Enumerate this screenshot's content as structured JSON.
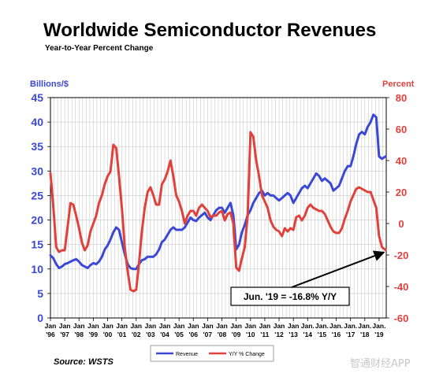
{
  "chart_data": {
    "type": "line",
    "title": "Worldwide Semiconductor Revenues",
    "subtitle": "Year-to-Year Percent Change",
    "ylabel_left": "Billions/$",
    "ylabel_right": "Percent",
    "ylim_left": [
      0,
      45
    ],
    "ylim_right": [
      -60,
      80
    ],
    "yticks_left": [
      "0",
      "5",
      "10",
      "15",
      "20",
      "25",
      "30",
      "35",
      "40",
      "45"
    ],
    "yticks_right": [
      "-60",
      "-40",
      "-20",
      "0",
      "20",
      "40",
      "60",
      "80"
    ],
    "xlim": [
      1996.0,
      2019.5
    ],
    "xticks": [
      {
        "x": 1996,
        "month": "Jan",
        "year": "'96"
      },
      {
        "x": 1997,
        "month": "Jan",
        "year": "'97"
      },
      {
        "x": 1998,
        "month": "Jan",
        "year": "'98"
      },
      {
        "x": 1999,
        "month": "Jan",
        "year": "'99"
      },
      {
        "x": 2000,
        "month": "Jan",
        "year": "'00"
      },
      {
        "x": 2001,
        "month": "Jan",
        "year": "'01"
      },
      {
        "x": 2002,
        "month": "Jan",
        "year": "'02"
      },
      {
        "x": 2003,
        "month": "Jan",
        "year": "'03"
      },
      {
        "x": 2004,
        "month": "Jan",
        "year": "'04"
      },
      {
        "x": 2005,
        "month": "Jan",
        "year": "'05"
      },
      {
        "x": 2006,
        "month": "Jan",
        "year": "'06"
      },
      {
        "x": 2007,
        "month": "Jan",
        "year": "'07"
      },
      {
        "x": 2008,
        "month": "Jan",
        "year": "'08"
      },
      {
        "x": 2009,
        "month": "Jan",
        "year": "'09"
      },
      {
        "x": 2010,
        "month": "Jan",
        "year": "'10"
      },
      {
        "x": 2011,
        "month": "Jan",
        "year": "'11"
      },
      {
        "x": 2012,
        "month": "Jan",
        "year": "'12"
      },
      {
        "x": 2013,
        "month": "Jan",
        "year": "'13"
      },
      {
        "x": 2014,
        "month": "Jan.",
        "year": "'14"
      },
      {
        "x": 2015,
        "month": "Jan.",
        "year": "'15"
      },
      {
        "x": 2016,
        "month": "Jan.",
        "year": "'16"
      },
      {
        "x": 2017,
        "month": "Jan.",
        "year": "'17"
      },
      {
        "x": 2018,
        "month": "Jan.",
        "year": "'18"
      },
      {
        "x": 2019,
        "month": "Jan.",
        "year": "'19"
      }
    ],
    "grid": true,
    "legend_position": "bottom-center",
    "series": [
      {
        "name": "Revenue",
        "axis": "left",
        "color": "#3b48d6",
        "points": [
          [
            1996.0,
            12.8
          ],
          [
            1996.2,
            12.2
          ],
          [
            1996.4,
            11.0
          ],
          [
            1996.6,
            10.2
          ],
          [
            1996.8,
            10.5
          ],
          [
            1997.0,
            11.0
          ],
          [
            1997.2,
            11.2
          ],
          [
            1997.4,
            11.5
          ],
          [
            1997.6,
            11.8
          ],
          [
            1997.8,
            12.0
          ],
          [
            1998.0,
            11.5
          ],
          [
            1998.2,
            10.8
          ],
          [
            1998.4,
            10.5
          ],
          [
            1998.6,
            10.2
          ],
          [
            1998.8,
            10.8
          ],
          [
            1999.0,
            11.2
          ],
          [
            1999.2,
            11.0
          ],
          [
            1999.4,
            11.5
          ],
          [
            1999.6,
            12.5
          ],
          [
            1999.8,
            14.0
          ],
          [
            2000.0,
            14.8
          ],
          [
            2000.2,
            16.0
          ],
          [
            2000.4,
            17.5
          ],
          [
            2000.6,
            18.5
          ],
          [
            2000.8,
            18.0
          ],
          [
            2001.0,
            15.5
          ],
          [
            2001.2,
            13.0
          ],
          [
            2001.4,
            11.0
          ],
          [
            2001.6,
            10.2
          ],
          [
            2001.8,
            10.0
          ],
          [
            2002.0,
            10.0
          ],
          [
            2002.2,
            11.0
          ],
          [
            2002.4,
            11.8
          ],
          [
            2002.6,
            12.0
          ],
          [
            2002.8,
            12.5
          ],
          [
            2003.0,
            12.5
          ],
          [
            2003.2,
            12.5
          ],
          [
            2003.4,
            13.0
          ],
          [
            2003.6,
            14.0
          ],
          [
            2003.8,
            15.5
          ],
          [
            2004.0,
            16.0
          ],
          [
            2004.2,
            17.0
          ],
          [
            2004.4,
            18.0
          ],
          [
            2004.6,
            18.5
          ],
          [
            2004.8,
            18.0
          ],
          [
            2005.0,
            18.0
          ],
          [
            2005.2,
            18.0
          ],
          [
            2005.4,
            18.5
          ],
          [
            2005.6,
            19.5
          ],
          [
            2005.8,
            20.5
          ],
          [
            2006.0,
            20.0
          ],
          [
            2006.2,
            19.8
          ],
          [
            2006.4,
            20.5
          ],
          [
            2006.6,
            21.0
          ],
          [
            2006.8,
            21.5
          ],
          [
            2007.0,
            20.5
          ],
          [
            2007.2,
            20.0
          ],
          [
            2007.4,
            21.0
          ],
          [
            2007.6,
            22.0
          ],
          [
            2007.8,
            22.5
          ],
          [
            2008.0,
            22.5
          ],
          [
            2008.2,
            21.5
          ],
          [
            2008.4,
            22.5
          ],
          [
            2008.6,
            23.5
          ],
          [
            2008.8,
            21.0
          ],
          [
            2009.0,
            14.0
          ],
          [
            2009.2,
            15.0
          ],
          [
            2009.4,
            17.5
          ],
          [
            2009.6,
            19.0
          ],
          [
            2009.8,
            21.0
          ],
          [
            2010.0,
            22.0
          ],
          [
            2010.2,
            23.5
          ],
          [
            2010.4,
            24.5
          ],
          [
            2010.6,
            25.5
          ],
          [
            2010.8,
            26.0
          ],
          [
            2011.0,
            25.0
          ],
          [
            2011.2,
            25.5
          ],
          [
            2011.4,
            25.0
          ],
          [
            2011.6,
            25.0
          ],
          [
            2011.8,
            24.5
          ],
          [
            2012.0,
            24.0
          ],
          [
            2012.2,
            24.5
          ],
          [
            2012.4,
            25.0
          ],
          [
            2012.6,
            25.5
          ],
          [
            2012.8,
            25.0
          ],
          [
            2013.0,
            23.5
          ],
          [
            2013.2,
            24.5
          ],
          [
            2013.4,
            25.5
          ],
          [
            2013.6,
            26.5
          ],
          [
            2013.8,
            27.0
          ],
          [
            2014.0,
            26.5
          ],
          [
            2014.2,
            27.5
          ],
          [
            2014.4,
            28.5
          ],
          [
            2014.6,
            29.5
          ],
          [
            2014.8,
            29.0
          ],
          [
            2015.0,
            28.0
          ],
          [
            2015.2,
            28.5
          ],
          [
            2015.4,
            28.0
          ],
          [
            2015.6,
            27.5
          ],
          [
            2015.8,
            26.0
          ],
          [
            2016.0,
            26.5
          ],
          [
            2016.2,
            27.0
          ],
          [
            2016.4,
            28.5
          ],
          [
            2016.6,
            30.0
          ],
          [
            2016.8,
            31.0
          ],
          [
            2017.0,
            31.0
          ],
          [
            2017.2,
            33.0
          ],
          [
            2017.4,
            35.5
          ],
          [
            2017.6,
            37.5
          ],
          [
            2017.8,
            38.0
          ],
          [
            2018.0,
            37.5
          ],
          [
            2018.2,
            39.0
          ],
          [
            2018.4,
            40.0
          ],
          [
            2018.6,
            41.5
          ],
          [
            2018.8,
            41.0
          ],
          [
            2019.0,
            33.0
          ],
          [
            2019.2,
            32.5
          ],
          [
            2019.45,
            33.0
          ]
        ]
      },
      {
        "name": "Y/Y % Change",
        "axis": "right",
        "color": "#e0413a",
        "points": [
          [
            1996.0,
            32.0
          ],
          [
            1996.1,
            22.0
          ],
          [
            1996.25,
            5.0
          ],
          [
            1996.4,
            -15.0
          ],
          [
            1996.6,
            -18.0
          ],
          [
            1996.8,
            -17.0
          ],
          [
            1997.0,
            -17.0
          ],
          [
            1997.2,
            -2.0
          ],
          [
            1997.4,
            13.0
          ],
          [
            1997.6,
            12.0
          ],
          [
            1997.8,
            5.0
          ],
          [
            1998.0,
            -3.0
          ],
          [
            1998.2,
            -12.0
          ],
          [
            1998.4,
            -17.0
          ],
          [
            1998.6,
            -14.0
          ],
          [
            1998.8,
            -5.0
          ],
          [
            1999.0,
            0.0
          ],
          [
            1999.2,
            5.0
          ],
          [
            1999.4,
            13.0
          ],
          [
            1999.6,
            18.0
          ],
          [
            1999.8,
            25.0
          ],
          [
            2000.0,
            30.0
          ],
          [
            2000.2,
            33.0
          ],
          [
            2000.4,
            50.0
          ],
          [
            2000.6,
            48.0
          ],
          [
            2000.8,
            30.0
          ],
          [
            2001.0,
            10.0
          ],
          [
            2001.2,
            -15.0
          ],
          [
            2001.4,
            -30.0
          ],
          [
            2001.6,
            -42.0
          ],
          [
            2001.8,
            -43.0
          ],
          [
            2002.0,
            -42.0
          ],
          [
            2002.2,
            -25.0
          ],
          [
            2002.4,
            -5.0
          ],
          [
            2002.6,
            10.0
          ],
          [
            2002.8,
            20.0
          ],
          [
            2003.0,
            23.0
          ],
          [
            2003.2,
            18.0
          ],
          [
            2003.4,
            12.0
          ],
          [
            2003.6,
            12.0
          ],
          [
            2003.8,
            25.0
          ],
          [
            2004.0,
            28.0
          ],
          [
            2004.2,
            33.0
          ],
          [
            2004.4,
            40.0
          ],
          [
            2004.6,
            30.0
          ],
          [
            2004.8,
            18.0
          ],
          [
            2005.0,
            14.0
          ],
          [
            2005.2,
            8.0
          ],
          [
            2005.4,
            0.0
          ],
          [
            2005.6,
            5.0
          ],
          [
            2005.8,
            8.0
          ],
          [
            2006.0,
            8.0
          ],
          [
            2006.2,
            5.0
          ],
          [
            2006.4,
            10.0
          ],
          [
            2006.6,
            12.0
          ],
          [
            2006.8,
            10.0
          ],
          [
            2007.0,
            8.0
          ],
          [
            2007.2,
            4.0
          ],
          [
            2007.4,
            5.0
          ],
          [
            2007.6,
            5.0
          ],
          [
            2007.8,
            7.0
          ],
          [
            2008.0,
            8.0
          ],
          [
            2008.2,
            2.0
          ],
          [
            2008.4,
            6.0
          ],
          [
            2008.6,
            7.0
          ],
          [
            2008.8,
            0.0
          ],
          [
            2009.0,
            -28.0
          ],
          [
            2009.2,
            -30.0
          ],
          [
            2009.4,
            -22.0
          ],
          [
            2009.6,
            -15.0
          ],
          [
            2009.8,
            5.0
          ],
          [
            2010.0,
            58.0
          ],
          [
            2010.2,
            55.0
          ],
          [
            2010.4,
            40.0
          ],
          [
            2010.6,
            30.0
          ],
          [
            2010.8,
            18.0
          ],
          [
            2011.0,
            14.0
          ],
          [
            2011.2,
            10.0
          ],
          [
            2011.4,
            2.0
          ],
          [
            2011.6,
            -2.0
          ],
          [
            2011.8,
            -4.0
          ],
          [
            2012.0,
            -5.0
          ],
          [
            2012.2,
            -8.0
          ],
          [
            2012.4,
            -3.0
          ],
          [
            2012.6,
            -5.0
          ],
          [
            2012.8,
            -3.0
          ],
          [
            2013.0,
            -4.0
          ],
          [
            2013.2,
            4.0
          ],
          [
            2013.4,
            5.0
          ],
          [
            2013.6,
            2.0
          ],
          [
            2013.8,
            5.0
          ],
          [
            2014.0,
            10.0
          ],
          [
            2014.2,
            12.0
          ],
          [
            2014.4,
            10.0
          ],
          [
            2014.6,
            9.0
          ],
          [
            2014.8,
            8.0
          ],
          [
            2015.0,
            8.0
          ],
          [
            2015.2,
            6.0
          ],
          [
            2015.4,
            2.0
          ],
          [
            2015.6,
            -2.0
          ],
          [
            2015.8,
            -5.0
          ],
          [
            2016.0,
            -6.0
          ],
          [
            2016.2,
            -6.0
          ],
          [
            2016.4,
            -3.0
          ],
          [
            2016.6,
            3.0
          ],
          [
            2016.8,
            8.0
          ],
          [
            2017.0,
            14.0
          ],
          [
            2017.2,
            18.0
          ],
          [
            2017.4,
            22.0
          ],
          [
            2017.6,
            23.0
          ],
          [
            2017.8,
            22.0
          ],
          [
            2018.0,
            21.0
          ],
          [
            2018.2,
            20.0
          ],
          [
            2018.4,
            20.0
          ],
          [
            2018.6,
            15.0
          ],
          [
            2018.8,
            10.0
          ],
          [
            2019.0,
            -8.0
          ],
          [
            2019.2,
            -15.0
          ],
          [
            2019.45,
            -16.8
          ]
        ]
      }
    ],
    "annotations": [
      {
        "text": "Jun. '19 = -16.8% Y/Y",
        "arrow_to": {
          "x": 2019.45,
          "y_right": -16.8
        }
      }
    ],
    "source": "Source: WSTS"
  },
  "watermark": "智通财经APP"
}
